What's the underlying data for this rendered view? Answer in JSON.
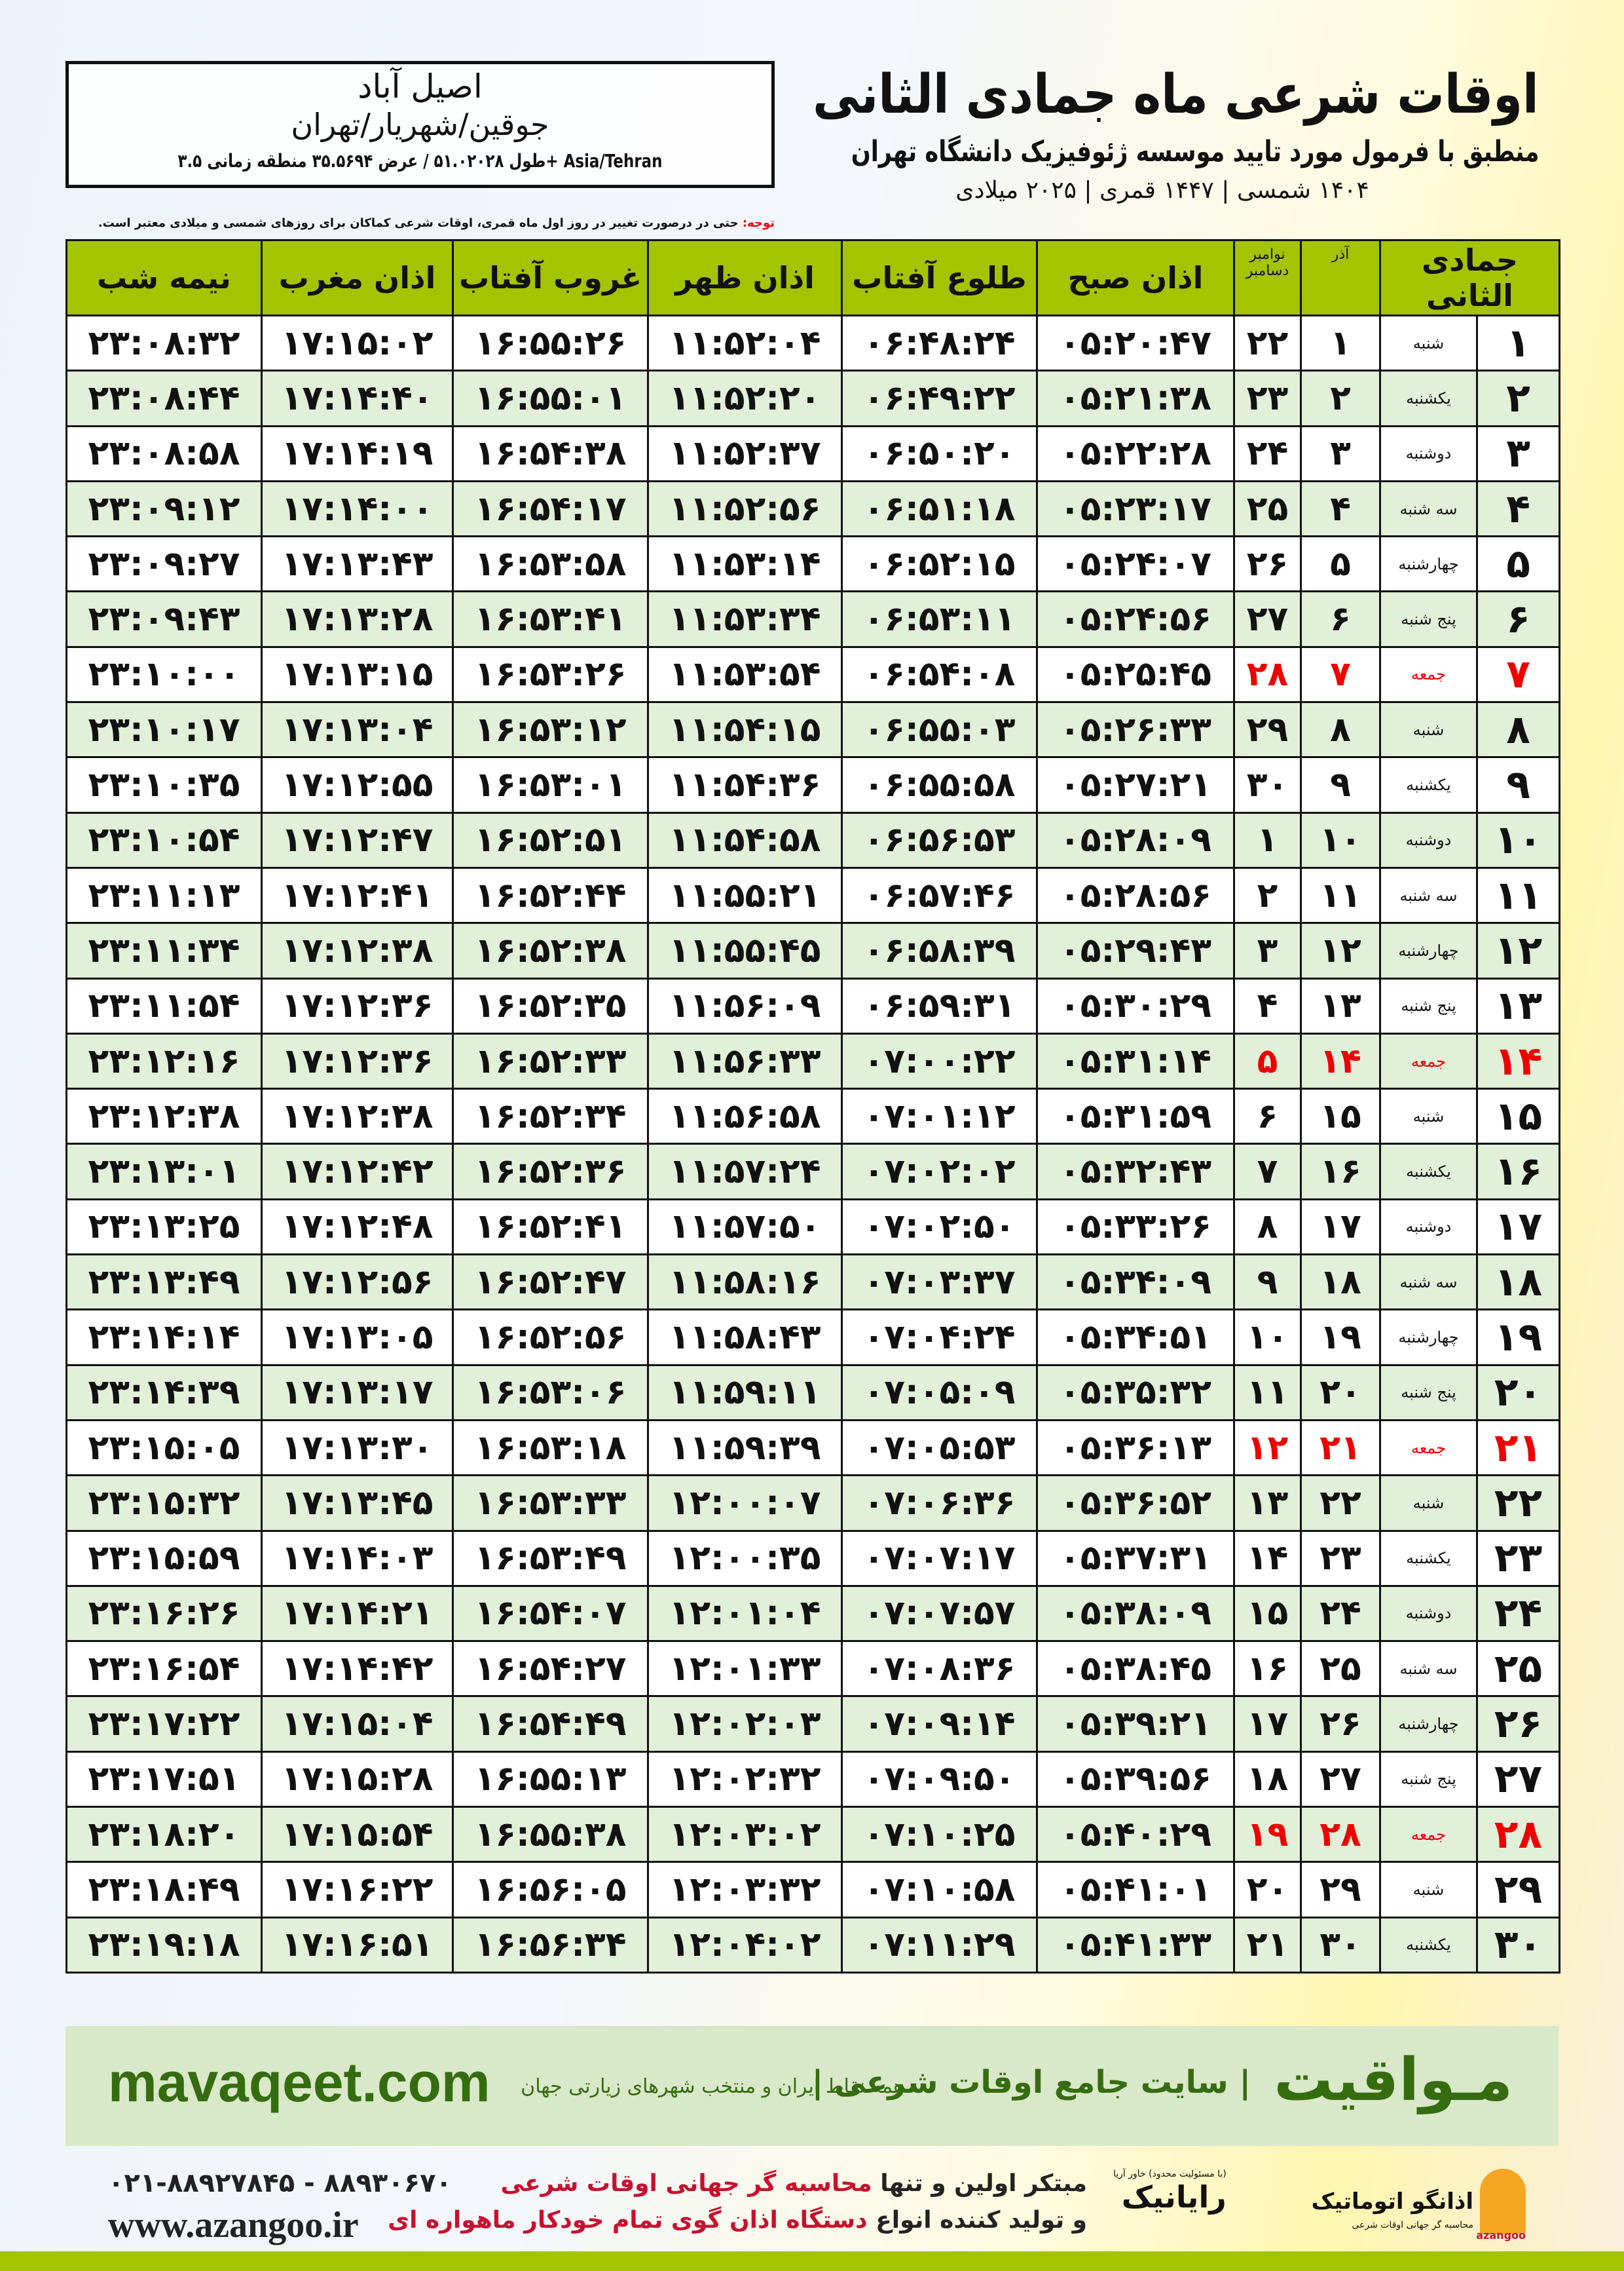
{
  "location": {
    "city": "اصیل آباد",
    "region": "جوقین/شهریار/تهران",
    "coords": "طول ۵۱.۰۲۰۲۸ / عرض ۳۵.۵۶۹۴ منطقه زمانی ۳.۵+ Asia/Tehran"
  },
  "header": {
    "title": "اوقات شرعی ماه جمادی الثانی",
    "subtitle": "منطبق با فرمول مورد تایید موسسه ژئوفیزیک دانشگاه تهران",
    "years": "۱۴۰۴ شمسی | ۱۴۴۷ قمری | ۲۰۲۵ میلادی"
  },
  "note": {
    "label": "توجه:",
    "text": " حتی در درصورت تغییر در روز اول ماه قمری، اوقات شرعی کماکان برای روزهای شمسی و میلادی معتبر است."
  },
  "table": {
    "columns": [
      "جمادی الثانی",
      "",
      "آذر",
      "نوامبر دسامبر",
      "اذان صبح",
      "طلوع آفتاب",
      "اذان ظهر",
      "غروب آفتاب",
      "اذان مغرب",
      "نیمه شب"
    ],
    "rows": [
      {
        "day": "۱",
        "weekday": "شنبه",
        "azar": "۱",
        "greg": "۲۲",
        "fajr": "۰۵:۲۰:۴۷",
        "sunrise": "۰۶:۴۸:۲۴",
        "dhuhr": "۱۱:۵۲:۰۴",
        "sunset": "۱۶:۵۵:۲۶",
        "maghrib": "۱۷:۱۵:۰۲",
        "midnight": "۲۳:۰۸:۳۲",
        "holiday": false
      },
      {
        "day": "۲",
        "weekday": "یکشنبه",
        "azar": "۲",
        "greg": "۲۳",
        "fajr": "۰۵:۲۱:۳۸",
        "sunrise": "۰۶:۴۹:۲۲",
        "dhuhr": "۱۱:۵۲:۲۰",
        "sunset": "۱۶:۵۵:۰۱",
        "maghrib": "۱۷:۱۴:۴۰",
        "midnight": "۲۳:۰۸:۴۴",
        "holiday": false
      },
      {
        "day": "۳",
        "weekday": "دوشنبه",
        "azar": "۳",
        "greg": "۲۴",
        "fajr": "۰۵:۲۲:۲۸",
        "sunrise": "۰۶:۵۰:۲۰",
        "dhuhr": "۱۱:۵۲:۳۷",
        "sunset": "۱۶:۵۴:۳۸",
        "maghrib": "۱۷:۱۴:۱۹",
        "midnight": "۲۳:۰۸:۵۸",
        "holiday": false
      },
      {
        "day": "۴",
        "weekday": "سه شنبه",
        "azar": "۴",
        "greg": "۲۵",
        "fajr": "۰۵:۲۳:۱۷",
        "sunrise": "۰۶:۵۱:۱۸",
        "dhuhr": "۱۱:۵۲:۵۶",
        "sunset": "۱۶:۵۴:۱۷",
        "maghrib": "۱۷:۱۴:۰۰",
        "midnight": "۲۳:۰۹:۱۲",
        "holiday": false
      },
      {
        "day": "۵",
        "weekday": "چهارشنبه",
        "azar": "۵",
        "greg": "۲۶",
        "fajr": "۰۵:۲۴:۰۷",
        "sunrise": "۰۶:۵۲:۱۵",
        "dhuhr": "۱۱:۵۳:۱۴",
        "sunset": "۱۶:۵۳:۵۸",
        "maghrib": "۱۷:۱۳:۴۳",
        "midnight": "۲۳:۰۹:۲۷",
        "holiday": false
      },
      {
        "day": "۶",
        "weekday": "پنج شنبه",
        "azar": "۶",
        "greg": "۲۷",
        "fajr": "۰۵:۲۴:۵۶",
        "sunrise": "۰۶:۵۳:۱۱",
        "dhuhr": "۱۱:۵۳:۳۴",
        "sunset": "۱۶:۵۳:۴۱",
        "maghrib": "۱۷:۱۳:۲۸",
        "midnight": "۲۳:۰۹:۴۳",
        "holiday": false
      },
      {
        "day": "۷",
        "weekday": "جمعه",
        "azar": "۷",
        "greg": "۲۸",
        "fajr": "۰۵:۲۵:۴۵",
        "sunrise": "۰۶:۵۴:۰۸",
        "dhuhr": "۱۱:۵۳:۵۴",
        "sunset": "۱۶:۵۳:۲۶",
        "maghrib": "۱۷:۱۳:۱۵",
        "midnight": "۲۳:۱۰:۰۰",
        "holiday": true
      },
      {
        "day": "۸",
        "weekday": "شنبه",
        "azar": "۸",
        "greg": "۲۹",
        "fajr": "۰۵:۲۶:۳۳",
        "sunrise": "۰۶:۵۵:۰۳",
        "dhuhr": "۱۱:۵۴:۱۵",
        "sunset": "۱۶:۵۳:۱۲",
        "maghrib": "۱۷:۱۳:۰۴",
        "midnight": "۲۳:۱۰:۱۷",
        "holiday": false
      },
      {
        "day": "۹",
        "weekday": "یکشنبه",
        "azar": "۹",
        "greg": "۳۰",
        "fajr": "۰۵:۲۷:۲۱",
        "sunrise": "۰۶:۵۵:۵۸",
        "dhuhr": "۱۱:۵۴:۳۶",
        "sunset": "۱۶:۵۳:۰۱",
        "maghrib": "۱۷:۱۲:۵۵",
        "midnight": "۲۳:۱۰:۳۵",
        "holiday": false
      },
      {
        "day": "۱۰",
        "weekday": "دوشنبه",
        "azar": "۱۰",
        "greg": "۱",
        "fajr": "۰۵:۲۸:۰۹",
        "sunrise": "۰۶:۵۶:۵۳",
        "dhuhr": "۱۱:۵۴:۵۸",
        "sunset": "۱۶:۵۲:۵۱",
        "maghrib": "۱۷:۱۲:۴۷",
        "midnight": "۲۳:۱۰:۵۴",
        "holiday": false
      },
      {
        "day": "۱۱",
        "weekday": "سه شنبه",
        "azar": "۱۱",
        "greg": "۲",
        "fajr": "۰۵:۲۸:۵۶",
        "sunrise": "۰۶:۵۷:۴۶",
        "dhuhr": "۱۱:۵۵:۲۱",
        "sunset": "۱۶:۵۲:۴۴",
        "maghrib": "۱۷:۱۲:۴۱",
        "midnight": "۲۳:۱۱:۱۳",
        "holiday": false
      },
      {
        "day": "۱۲",
        "weekday": "چهارشنبه",
        "azar": "۱۲",
        "greg": "۳",
        "fajr": "۰۵:۲۹:۴۳",
        "sunrise": "۰۶:۵۸:۳۹",
        "dhuhr": "۱۱:۵۵:۴۵",
        "sunset": "۱۶:۵۲:۳۸",
        "maghrib": "۱۷:۱۲:۳۸",
        "midnight": "۲۳:۱۱:۳۴",
        "holiday": false
      },
      {
        "day": "۱۳",
        "weekday": "پنج شنبه",
        "azar": "۱۳",
        "greg": "۴",
        "fajr": "۰۵:۳۰:۲۹",
        "sunrise": "۰۶:۵۹:۳۱",
        "dhuhr": "۱۱:۵۶:۰۹",
        "sunset": "۱۶:۵۲:۳۵",
        "maghrib": "۱۷:۱۲:۳۶",
        "midnight": "۲۳:۱۱:۵۴",
        "holiday": false
      },
      {
        "day": "۱۴",
        "weekday": "جمعه",
        "azar": "۱۴",
        "greg": "۵",
        "fajr": "۰۵:۳۱:۱۴",
        "sunrise": "۰۷:۰۰:۲۲",
        "dhuhr": "۱۱:۵۶:۳۳",
        "sunset": "۱۶:۵۲:۳۳",
        "maghrib": "۱۷:۱۲:۳۶",
        "midnight": "۲۳:۱۲:۱۶",
        "holiday": true
      },
      {
        "day": "۱۵",
        "weekday": "شنبه",
        "azar": "۱۵",
        "greg": "۶",
        "fajr": "۰۵:۳۱:۵۹",
        "sunrise": "۰۷:۰۱:۱۲",
        "dhuhr": "۱۱:۵۶:۵۸",
        "sunset": "۱۶:۵۲:۳۴",
        "maghrib": "۱۷:۱۲:۳۸",
        "midnight": "۲۳:۱۲:۳۸",
        "holiday": false
      },
      {
        "day": "۱۶",
        "weekday": "یکشنبه",
        "azar": "۱۶",
        "greg": "۷",
        "fajr": "۰۵:۳۲:۴۳",
        "sunrise": "۰۷:۰۲:۰۲",
        "dhuhr": "۱۱:۵۷:۲۴",
        "sunset": "۱۶:۵۲:۳۶",
        "maghrib": "۱۷:۱۲:۴۲",
        "midnight": "۲۳:۱۳:۰۱",
        "holiday": false
      },
      {
        "day": "۱۷",
        "weekday": "دوشنبه",
        "azar": "۱۷",
        "greg": "۸",
        "fajr": "۰۵:۳۳:۲۶",
        "sunrise": "۰۷:۰۲:۵۰",
        "dhuhr": "۱۱:۵۷:۵۰",
        "sunset": "۱۶:۵۲:۴۱",
        "maghrib": "۱۷:۱۲:۴۸",
        "midnight": "۲۳:۱۳:۲۵",
        "holiday": false
      },
      {
        "day": "۱۸",
        "weekday": "سه شنبه",
        "azar": "۱۸",
        "greg": "۹",
        "fajr": "۰۵:۳۴:۰۹",
        "sunrise": "۰۷:۰۳:۳۷",
        "dhuhr": "۱۱:۵۸:۱۶",
        "sunset": "۱۶:۵۲:۴۷",
        "maghrib": "۱۷:۱۲:۵۶",
        "midnight": "۲۳:۱۳:۴۹",
        "holiday": false
      },
      {
        "day": "۱۹",
        "weekday": "چهارشنبه",
        "azar": "۱۹",
        "greg": "۱۰",
        "fajr": "۰۵:۳۴:۵۱",
        "sunrise": "۰۷:۰۴:۲۴",
        "dhuhr": "۱۱:۵۸:۴۳",
        "sunset": "۱۶:۵۲:۵۶",
        "maghrib": "۱۷:۱۳:۰۵",
        "midnight": "۲۳:۱۴:۱۴",
        "holiday": false
      },
      {
        "day": "۲۰",
        "weekday": "پنج شنبه",
        "azar": "۲۰",
        "greg": "۱۱",
        "fajr": "۰۵:۳۵:۳۲",
        "sunrise": "۰۷:۰۵:۰۹",
        "dhuhr": "۱۱:۵۹:۱۱",
        "sunset": "۱۶:۵۳:۰۶",
        "maghrib": "۱۷:۱۳:۱۷",
        "midnight": "۲۳:۱۴:۳۹",
        "holiday": false
      },
      {
        "day": "۲۱",
        "weekday": "جمعه",
        "azar": "۲۱",
        "greg": "۱۲",
        "fajr": "۰۵:۳۶:۱۳",
        "sunrise": "۰۷:۰۵:۵۳",
        "dhuhr": "۱۱:۵۹:۳۹",
        "sunset": "۱۶:۵۳:۱۸",
        "maghrib": "۱۷:۱۳:۳۰",
        "midnight": "۲۳:۱۵:۰۵",
        "holiday": true
      },
      {
        "day": "۲۲",
        "weekday": "شنبه",
        "azar": "۲۲",
        "greg": "۱۳",
        "fajr": "۰۵:۳۶:۵۲",
        "sunrise": "۰۷:۰۶:۳۶",
        "dhuhr": "۱۲:۰۰:۰۷",
        "sunset": "۱۶:۵۳:۳۳",
        "maghrib": "۱۷:۱۳:۴۵",
        "midnight": "۲۳:۱۵:۳۲",
        "holiday": false
      },
      {
        "day": "۲۳",
        "weekday": "یکشنبه",
        "azar": "۲۳",
        "greg": "۱۴",
        "fajr": "۰۵:۳۷:۳۱",
        "sunrise": "۰۷:۰۷:۱۷",
        "dhuhr": "۱۲:۰۰:۳۵",
        "sunset": "۱۶:۵۳:۴۹",
        "maghrib": "۱۷:۱۴:۰۳",
        "midnight": "۲۳:۱۵:۵۹",
        "holiday": false
      },
      {
        "day": "۲۴",
        "weekday": "دوشنبه",
        "azar": "۲۴",
        "greg": "۱۵",
        "fajr": "۰۵:۳۸:۰۹",
        "sunrise": "۰۷:۰۷:۵۷",
        "dhuhr": "۱۲:۰۱:۰۴",
        "sunset": "۱۶:۵۴:۰۷",
        "maghrib": "۱۷:۱۴:۲۱",
        "midnight": "۲۳:۱۶:۲۶",
        "holiday": false
      },
      {
        "day": "۲۵",
        "weekday": "سه شنبه",
        "azar": "۲۵",
        "greg": "۱۶",
        "fajr": "۰۵:۳۸:۴۵",
        "sunrise": "۰۷:۰۸:۳۶",
        "dhuhr": "۱۲:۰۱:۳۳",
        "sunset": "۱۶:۵۴:۲۷",
        "maghrib": "۱۷:۱۴:۴۲",
        "midnight": "۲۳:۱۶:۵۴",
        "holiday": false
      },
      {
        "day": "۲۶",
        "weekday": "چهارشنبه",
        "azar": "۲۶",
        "greg": "۱۷",
        "fajr": "۰۵:۳۹:۲۱",
        "sunrise": "۰۷:۰۹:۱۴",
        "dhuhr": "۱۲:۰۲:۰۳",
        "sunset": "۱۶:۵۴:۴۹",
        "maghrib": "۱۷:۱۵:۰۴",
        "midnight": "۲۳:۱۷:۲۲",
        "holiday": false
      },
      {
        "day": "۲۷",
        "weekday": "پنج شنبه",
        "azar": "۲۷",
        "greg": "۱۸",
        "fajr": "۰۵:۳۹:۵۶",
        "sunrise": "۰۷:۰۹:۵۰",
        "dhuhr": "۱۲:۰۲:۳۲",
        "sunset": "۱۶:۵۵:۱۳",
        "maghrib": "۱۷:۱۵:۲۸",
        "midnight": "۲۳:۱۷:۵۱",
        "holiday": false
      },
      {
        "day": "۲۸",
        "weekday": "جمعه",
        "azar": "۲۸",
        "greg": "۱۹",
        "fajr": "۰۵:۴۰:۲۹",
        "sunrise": "۰۷:۱۰:۲۵",
        "dhuhr": "۱۲:۰۳:۰۲",
        "sunset": "۱۶:۵۵:۳۸",
        "maghrib": "۱۷:۱۵:۵۴",
        "midnight": "۲۳:۱۸:۲۰",
        "holiday": true
      },
      {
        "day": "۲۹",
        "weekday": "شنبه",
        "azar": "۲۹",
        "greg": "۲۰",
        "fajr": "۰۵:۴۱:۰۱",
        "sunrise": "۰۷:۱۰:۵۸",
        "dhuhr": "۱۲:۰۳:۳۲",
        "sunset": "۱۶:۵۶:۰۵",
        "maghrib": "۱۷:۱۶:۲۲",
        "midnight": "۲۳:۱۸:۴۹",
        "holiday": false
      },
      {
        "day": "۳۰",
        "weekday": "یکشنبه",
        "azar": "۳۰",
        "greg": "۲۱",
        "fajr": "۰۵:۴۱:۳۳",
        "sunrise": "۰۷:۱۱:۲۹",
        "dhuhr": "۱۲:۰۴:۰۲",
        "sunset": "۱۶:۵۶:۳۴",
        "maghrib": "۱۷:۱۶:۵۱",
        "midnight": "۲۳:۱۹:۱۸",
        "holiday": false
      }
    ]
  },
  "footer": {
    "site": "mavaqeet.com",
    "brand": "مـواقیت",
    "tagline": "| سایت جامع اوقات شرعی |",
    "sub": "همه نقاط ایران و منتخب شهرهای زیارتی جهان"
  },
  "contact": {
    "phone": "۰۲۱-۸۸۹۲۷۸۴۵ - ۸۸۹۳۰۶۷۰",
    "web": "www.azangoo.ir"
  },
  "slogan": {
    "l1a": "مبتکر اولین و تنها ",
    "l1b": "محاسبه گر جهانی اوقات شرعی",
    "l2a": "و تولید کننده انواع ",
    "l2b": "دستگاه اذان گوی تمام خودکار ماهواره ای"
  },
  "logos": {
    "rayanik": "رایانیک",
    "rayanik_sub": "(با مسئولیت محدود) خاور آریا",
    "azangoo": "اذانگو اتوماتیک",
    "azangoo_en": "azangoo",
    "azangoo_sub": "محاسبه گر جهانی اوقات شرعی"
  },
  "colors": {
    "header_green": "#a4c400",
    "row_green": "#e2efd9",
    "holiday_red": "#e00000",
    "brand_green": "#356c10"
  }
}
